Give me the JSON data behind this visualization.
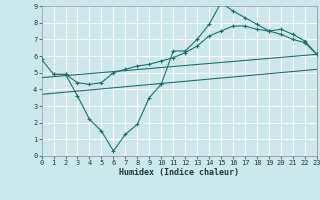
{
  "xlabel": "Humidex (Indice chaleur)",
  "bg_color": "#cde8ea",
  "grid_color": "#ffffff",
  "line_color": "#1e6e6e",
  "xlim": [
    0,
    23
  ],
  "ylim": [
    0,
    9
  ],
  "xticks": [
    0,
    1,
    2,
    3,
    4,
    5,
    6,
    7,
    8,
    9,
    10,
    11,
    12,
    13,
    14,
    15,
    16,
    17,
    18,
    19,
    20,
    21,
    22,
    23
  ],
  "yticks": [
    0,
    1,
    2,
    3,
    4,
    5,
    6,
    7,
    8,
    9
  ],
  "line1_x": [
    0,
    1,
    2,
    3,
    4,
    5,
    6,
    7,
    8,
    9,
    10,
    11,
    12,
    13,
    14,
    15,
    16,
    17,
    18,
    19,
    20,
    21,
    22,
    23
  ],
  "line1_y": [
    5.8,
    4.9,
    4.9,
    4.4,
    4.3,
    4.4,
    5.0,
    5.2,
    5.4,
    5.5,
    5.7,
    5.9,
    6.2,
    6.6,
    7.2,
    7.5,
    7.8,
    7.8,
    7.6,
    7.5,
    7.3,
    7.0,
    6.8,
    6.1
  ],
  "line2_x": [
    1,
    2,
    3,
    4,
    5,
    6,
    7,
    8,
    9,
    10,
    11,
    12,
    13,
    14,
    15,
    16,
    17,
    18,
    19,
    20,
    21,
    22,
    23
  ],
  "line2_y": [
    4.9,
    4.9,
    3.6,
    2.2,
    1.5,
    0.3,
    1.3,
    1.9,
    3.5,
    4.3,
    6.3,
    6.3,
    7.0,
    7.9,
    9.2,
    8.7,
    8.3,
    7.9,
    7.5,
    7.6,
    7.3,
    6.9,
    6.1
  ],
  "line3_x": [
    0,
    23
  ],
  "line3_y": [
    4.7,
    6.1
  ],
  "line4_x": [
    0,
    23
  ],
  "line4_y": [
    3.7,
    5.2
  ]
}
